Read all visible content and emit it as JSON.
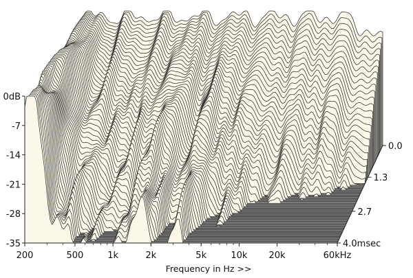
{
  "chart_data": {
    "type": "waterfall",
    "title": "",
    "xlabel": "Frequency in Hz >>",
    "ylabel": "",
    "x_scale": "log",
    "x_range_hz": [
      200,
      60000
    ],
    "x_ticks": [
      {
        "label": "200",
        "value": 200
      },
      {
        "label": "500",
        "value": 500
      },
      {
        "label": "1k",
        "value": 1000
      },
      {
        "label": "2k",
        "value": 2000
      },
      {
        "label": "5k",
        "value": 5000
      },
      {
        "label": "10k",
        "value": 10000
      },
      {
        "label": "20k",
        "value": 20000
      },
      {
        "label": "60kHz",
        "value": 60000
      }
    ],
    "y_range_db": [
      -35,
      0
    ],
    "y_ticks": [
      {
        "label": "0dB",
        "value": 0
      },
      {
        "label": "-7",
        "value": -7
      },
      {
        "label": "-14",
        "value": -14
      },
      {
        "label": "-21",
        "value": -21
      },
      {
        "label": "-28",
        "value": -28
      },
      {
        "label": "-35",
        "value": -35
      }
    ],
    "time_range_ms": [
      0,
      4.0
    ],
    "time_ticks": [
      {
        "label": "0.0",
        "value": 0.0
      },
      {
        "label": "1.3",
        "value": 1.3
      },
      {
        "label": "2.7",
        "value": 2.7
      },
      {
        "label": "4.0msec",
        "value": 4.0
      }
    ],
    "slices": 60,
    "surface_color": "#fbf8e9",
    "floor_color": "#8a8a8a",
    "line_color": "#2b2b2b"
  }
}
